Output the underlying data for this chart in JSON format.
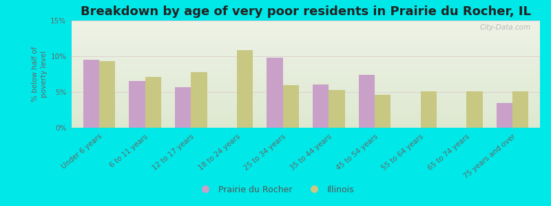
{
  "title": "Breakdown by age of very poor residents in Prairie du Rocher, IL",
  "ylabel": "% below half of\npoverty level",
  "categories": [
    "Under 6 years",
    "6 to 11 years",
    "12 to 17 years",
    "18 to 24 years",
    "25 to 34 years",
    "35 to 44 years",
    "45 to 54 years",
    "55 to 64 years",
    "65 to 74 years",
    "75 years and over"
  ],
  "prairie_values": [
    9.5,
    6.5,
    5.7,
    0.0,
    9.8,
    6.1,
    7.4,
    0.0,
    0.0,
    3.5
  ],
  "illinois_values": [
    9.3,
    7.1,
    7.8,
    10.9,
    6.0,
    5.3,
    4.6,
    5.1,
    5.1,
    5.1
  ],
  "prairie_color": "#c8a0c8",
  "illinois_color": "#c8c882",
  "background_color": "#00e8e8",
  "plot_bg_top": "#eef2e6",
  "plot_bg_bottom": "#dde8d0",
  "ylim": [
    0,
    15
  ],
  "yticks": [
    0,
    5,
    10,
    15
  ],
  "ytick_labels": [
    "0%",
    "5%",
    "10%",
    "15%"
  ],
  "bar_width": 0.35,
  "title_fontsize": 13,
  "legend_labels": [
    "Prairie du Rocher",
    "Illinois"
  ],
  "watermark": "City-Data.com"
}
